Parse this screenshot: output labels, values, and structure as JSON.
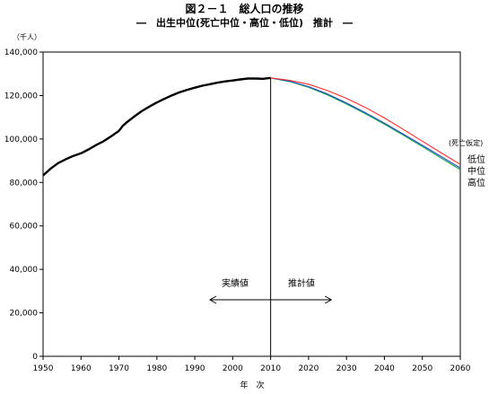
{
  "chart_data": {
    "type": "line",
    "title": "図２－１　総人口の推移",
    "subtitle": "―　出生中位(死亡中位・高位・低位)　推計　―",
    "ylabel": "（千人）",
    "xlabel": "年　次",
    "xlim": [
      1950,
      2060
    ],
    "ylim": [
      0,
      140000
    ],
    "x_ticks": [
      "1950",
      "1960",
      "1970",
      "1980",
      "1990",
      "2000",
      "2010",
      "2020",
      "2030",
      "2040",
      "2050",
      "2060"
    ],
    "y_ticks": [
      "0",
      "20,000",
      "40,000",
      "60,000",
      "80,000",
      "100,000",
      "120,000",
      "140,000"
    ],
    "grid": false,
    "annotations": {
      "actual_label": "実績値",
      "projection_label": "推計値",
      "split_year": 2010,
      "arrow_from": 1994,
      "arrow_to": 2026
    },
    "legend_title": "(死亡仮定)",
    "series": [
      {
        "name": "実績値",
        "color": "#000000",
        "x": [
          1950,
          1952,
          1954,
          1956,
          1958,
          1960,
          1962,
          1964,
          1966,
          1968,
          1970,
          1971,
          1972,
          1974,
          1976,
          1978,
          1980,
          1982,
          1984,
          1986,
          1988,
          1990,
          1992,
          1994,
          1996,
          1998,
          2000,
          2002,
          2004,
          2006,
          2008,
          2010
        ],
        "values": [
          83200,
          86400,
          88900,
          90700,
          92200,
          93400,
          95200,
          97200,
          99000,
          101300,
          103700,
          106000,
          107600,
          110300,
          112800,
          114900,
          116800,
          118500,
          120100,
          121500,
          122600,
          123600,
          124500,
          125200,
          125900,
          126500,
          126900,
          127400,
          127800,
          127800,
          127700,
          128100
        ]
      },
      {
        "name": "低位",
        "color": "#ff2a2a",
        "x": [
          2010,
          2015,
          2020,
          2025,
          2030,
          2035,
          2040,
          2045,
          2050,
          2055,
          2060
        ],
        "values": [
          128100,
          127000,
          125200,
          122300,
          118700,
          114500,
          109700,
          104400,
          99000,
          93600,
          88300
        ]
      },
      {
        "name": "中位",
        "color": "#2050c8",
        "x": [
          2010,
          2015,
          2020,
          2025,
          2030,
          2035,
          2040,
          2045,
          2050,
          2055,
          2060
        ],
        "values": [
          128100,
          126600,
          124100,
          120700,
          116600,
          112100,
          107300,
          102200,
          97100,
          91900,
          86700
        ]
      },
      {
        "name": "高位",
        "color": "#10a040",
        "x": [
          2010,
          2015,
          2020,
          2025,
          2030,
          2035,
          2040,
          2045,
          2050,
          2055,
          2060
        ],
        "values": [
          128100,
          126400,
          123800,
          120300,
          116100,
          111600,
          106800,
          101700,
          96500,
          91200,
          85900
        ]
      }
    ]
  }
}
